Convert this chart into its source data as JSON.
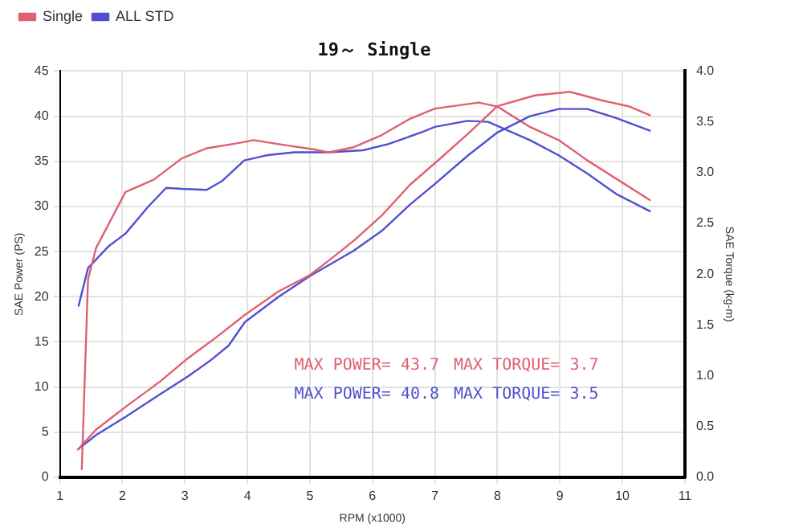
{
  "chart_data": {
    "type": "line",
    "title": "19～ Single",
    "xlabel": "RPM (x1000)",
    "ylabel": "SAE Power (PS)",
    "y2label": "SAE Torque (kg-m)",
    "xlim": [
      1,
      11
    ],
    "xticks": [
      1,
      2,
      3,
      4,
      5,
      6,
      7,
      8,
      9,
      10,
      11
    ],
    "ylim": [
      0,
      45
    ],
    "yticks": [
      0,
      5,
      10,
      15,
      20,
      25,
      30,
      35,
      40,
      45
    ],
    "y2lim": [
      0,
      4
    ],
    "y2ticks": [
      {
        "value": 0,
        "label": "0.0"
      },
      {
        "value": 0.5,
        "label": "0.5"
      },
      {
        "value": 1,
        "label": "1.0"
      },
      {
        "value": 1.5,
        "label": "1.5"
      },
      {
        "value": 2,
        "label": "2.0"
      },
      {
        "value": 2.5,
        "label": "2.5"
      },
      {
        "value": 3,
        "label": "3.0"
      },
      {
        "value": 3.5,
        "label": "3.5"
      },
      {
        "value": 4,
        "label": "4.0"
      }
    ],
    "grid": true,
    "legend": "top left",
    "marker": "none",
    "line_style": "solid",
    "annotations": [
      "MAX POWER= 43.7",
      "MAX TORQUE= 3.7",
      "MAX POWER= 40.8",
      "MAX TORQUE= 3.5"
    ],
    "series": [
      {
        "name": "Single",
        "color": "#e06070",
        "x": [
          1.29,
          1.58,
          2.05,
          2.6,
          3.05,
          3.5,
          3.96,
          4.5,
          5,
          5.3,
          5.7,
          6.15,
          6.6,
          7,
          7.52,
          8,
          8.6,
          9.16,
          9.7,
          10.1,
          10.44
        ],
        "values": [
          3.1,
          5.3,
          7.8,
          10.6,
          13.2,
          15.5,
          18,
          20.6,
          22.4,
          24,
          26.2,
          29,
          32.4,
          34.8,
          38,
          41.1,
          42.3,
          42.7,
          41.7,
          41.1,
          40.1
        ]
      },
      {
        "name": "ALL STD",
        "color": "#5050d0",
        "x": [
          1.29,
          1.58,
          2.05,
          2.6,
          3.05,
          3.4,
          3.7,
          3.96,
          4.5,
          5,
          5.7,
          6.15,
          6.6,
          7,
          7.52,
          8,
          8.52,
          8.98,
          9.44,
          9.9,
          10.44
        ],
        "values": [
          3.1,
          4.7,
          6.7,
          9.2,
          11.2,
          12.9,
          14.6,
          17.2,
          20,
          22.3,
          25.1,
          27.3,
          30.2,
          32.5,
          35.6,
          38.2,
          40,
          40.8,
          40.8,
          39.8,
          38.4
        ]
      },
      {
        "color": "#e06070",
        "axis": "y2",
        "x": [
          1.35,
          1.45,
          1.58,
          2.05,
          2.5,
          2.95,
          3.35,
          3.85,
          4.1,
          4.5,
          5.05,
          5.3,
          5.7,
          6.15,
          6.6,
          7,
          7.35,
          7.7,
          8,
          8.52,
          8.98,
          9.44,
          9.9,
          10.44
        ],
        "values": [
          0.08,
          1.95,
          2.26,
          2.81,
          2.93,
          3.14,
          3.24,
          3.29,
          3.32,
          3.28,
          3.23,
          3.2,
          3.25,
          3.37,
          3.53,
          3.63,
          3.66,
          3.69,
          3.65,
          3.45,
          3.32,
          3.12,
          2.94,
          2.73
        ]
      },
      {
        "color": "#5050d0",
        "axis": "y2",
        "x": [
          1.3,
          1.45,
          1.77,
          2.05,
          2.42,
          2.7,
          2.95,
          3.35,
          3.6,
          3.95,
          4.3,
          4.75,
          5.3,
          5.85,
          6.25,
          6.8,
          7,
          7.52,
          7.85,
          8.52,
          8.98,
          9.44,
          9.9,
          10.44
        ],
        "values": [
          1.69,
          2.06,
          2.27,
          2.4,
          2.67,
          2.85,
          2.84,
          2.83,
          2.92,
          3.12,
          3.17,
          3.2,
          3.2,
          3.22,
          3.28,
          3.4,
          3.45,
          3.51,
          3.5,
          3.32,
          3.17,
          2.99,
          2.79,
          2.62
        ]
      }
    ]
  }
}
